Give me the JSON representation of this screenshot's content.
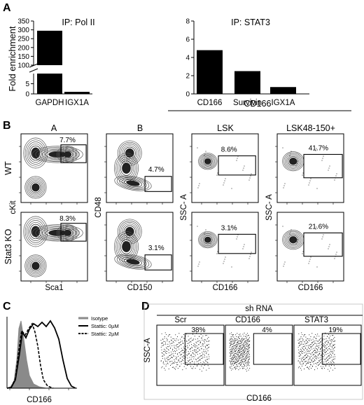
{
  "panels": {
    "a": "A",
    "b": "B",
    "c": "C",
    "d": "D"
  },
  "chart_data": [
    {
      "id": "A-left",
      "type": "bar",
      "title": "IP: Pol II",
      "ylabel": "Fold enrichment",
      "categories": [
        "GAPDH",
        "IGX1A"
      ],
      "values": [
        295,
        1
      ],
      "ylim_lower": [
        0,
        10
      ],
      "ylim_upper": [
        100,
        350
      ],
      "yticks_lower": [
        "0",
        "5"
      ],
      "yticks_upper": [
        "100",
        "150",
        "200",
        "250",
        "300",
        "350"
      ]
    },
    {
      "id": "A-right",
      "type": "bar",
      "title": "IP: STAT3",
      "categories": [
        "CD166",
        "Survivin",
        "IGX1A"
      ],
      "values": [
        4.8,
        2.5,
        0.75
      ],
      "ylim": [
        0,
        8
      ],
      "yticks": [
        "0",
        "2",
        "4",
        "6",
        "8"
      ]
    },
    {
      "id": "B",
      "type": "scatter",
      "column_titles": [
        "A",
        "B",
        "LSK",
        "LSK48-150+"
      ],
      "group_title": "CD166",
      "row_labels": [
        "WT",
        "Stat3 KO"
      ],
      "xlabels": [
        "Sca1",
        "CD150",
        "CD166",
        "CD166"
      ],
      "ylabels": [
        "cKit",
        "CD48",
        "SSC- A",
        "SSC- A"
      ],
      "gate_percentages": [
        [
          "7.7%",
          "4.7%",
          "8.6%",
          "41.7%"
        ],
        [
          "8.3%",
          "3.1%",
          "3.1%",
          "21.6%"
        ]
      ]
    },
    {
      "id": "C",
      "type": "line",
      "xlabel": "CD166",
      "series": [
        {
          "name": "Isotype",
          "color": "#8a8a8a"
        },
        {
          "name": "Stattic: 0µM",
          "color": "#000000"
        },
        {
          "name": "Stattic: 2µM",
          "color": "#000000"
        }
      ]
    },
    {
      "id": "D",
      "type": "scatter",
      "group_title": "sh RNA",
      "column_titles": [
        "Scr",
        "CD166",
        "STAT3"
      ],
      "gate_percentages": [
        "38%",
        "4%",
        "19%"
      ],
      "ylabel": "SSC-A",
      "xlabel": "CD166"
    }
  ]
}
